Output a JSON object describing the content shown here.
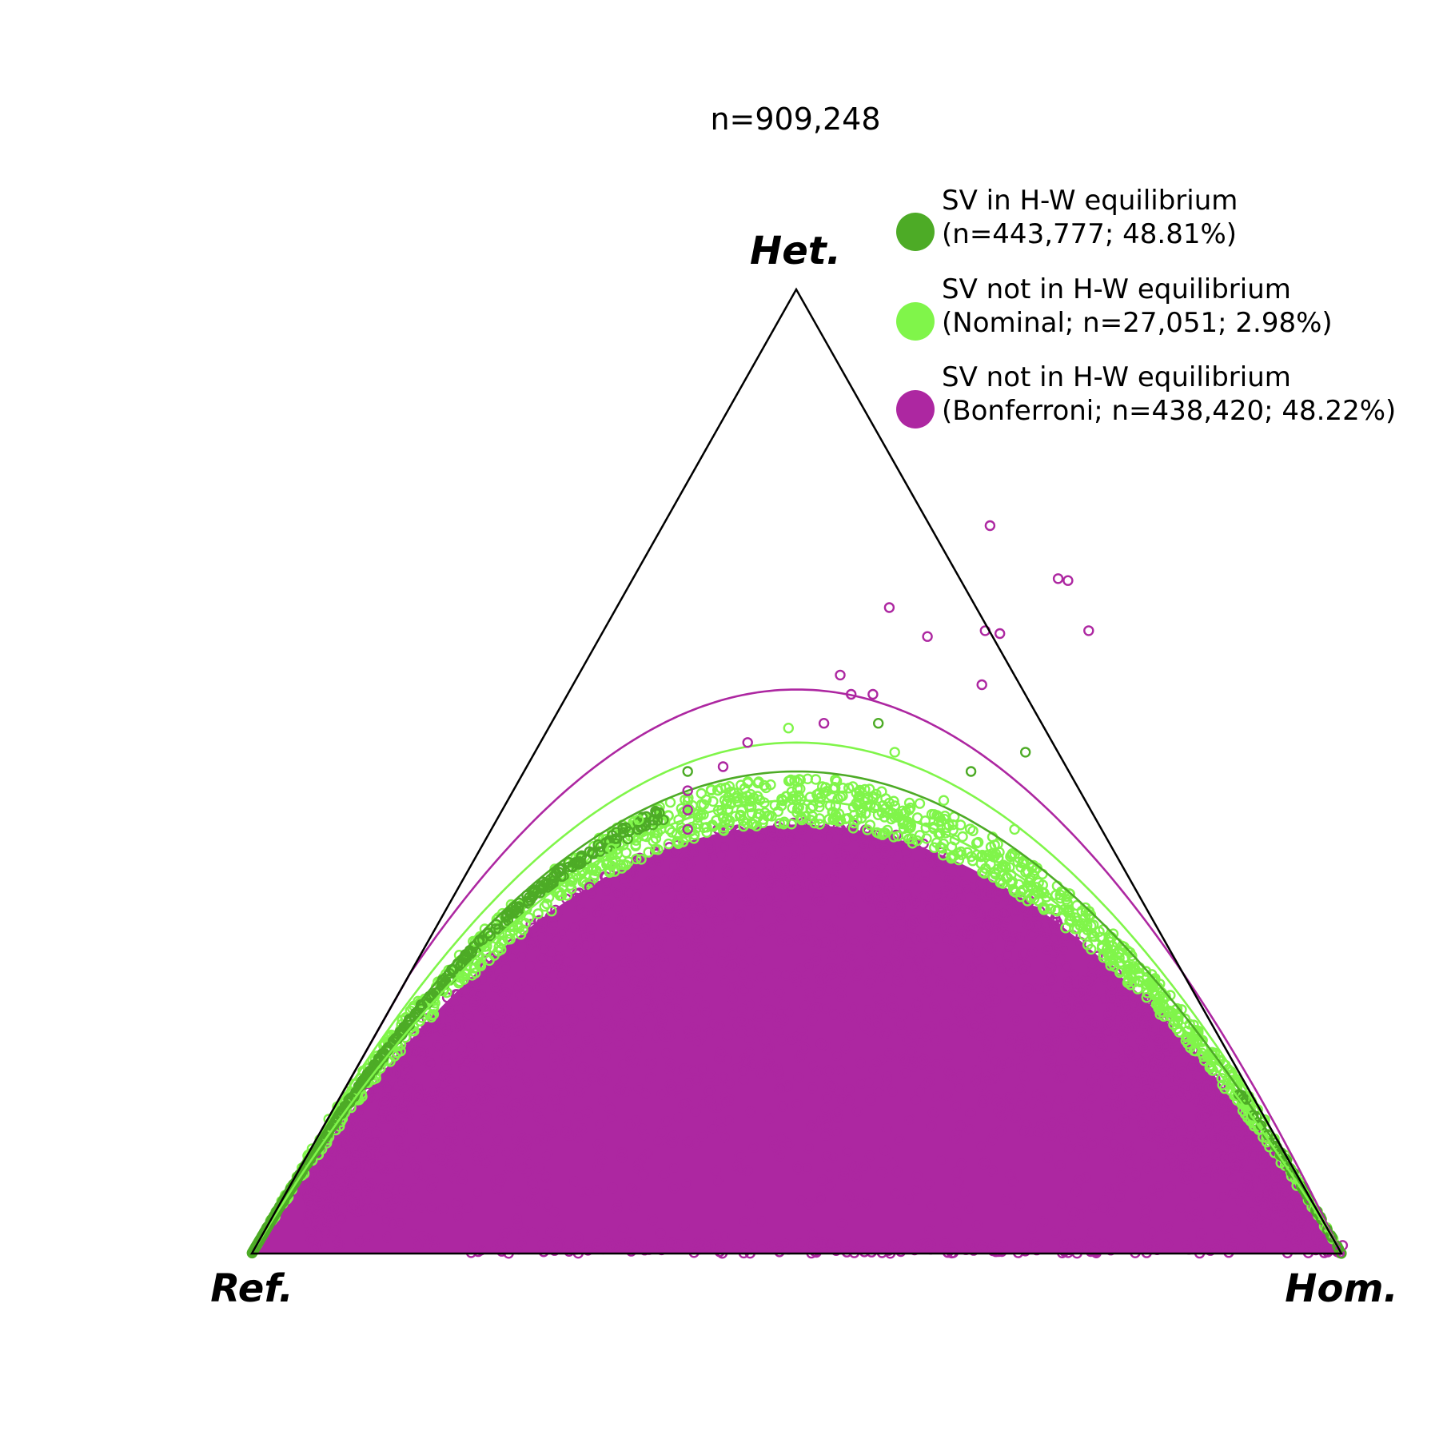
{
  "chart_data": {
    "type": "scatter",
    "subtype": "ternary (de Finetti) plot",
    "title": "n=909,248",
    "vertices": {
      "top": "Het.",
      "left": "Ref.",
      "right": "Hom."
    },
    "legend": {
      "placement": "top-right",
      "entries": [
        {
          "line1": "SV in H-W equilibrium",
          "line2": "(n=443,777; 48.81%)",
          "color": "#4dab26"
        },
        {
          "line1": "SV not in H-W equilibrium",
          "line2": "(Nominal; n=27,051; 2.98%)",
          "color": "#80f54a"
        },
        {
          "line1": "SV not in H-W equilibrium",
          "line2": "(Bonferroni; n=438,420; 48.22%)",
          "color": "#ad27a1"
        }
      ]
    },
    "reference_curves": [
      {
        "color": "#ad27a1",
        "peak_het_fraction": 0.585
      },
      {
        "color": "#80f54a",
        "peak_het_fraction": 0.53
      },
      {
        "color": "#4dab26",
        "peak_het_fraction": 0.5
      },
      {
        "color": "#80f54a",
        "peak_het_fraction": 0.47
      }
    ],
    "outlier_points_het_hom": [
      {
        "het": 0.755,
        "hom": 0.3
      },
      {
        "het": 0.698,
        "hom": 0.4
      },
      {
        "het": 0.7,
        "hom": 0.39
      },
      {
        "het": 0.67,
        "hom": 0.25
      },
      {
        "het": 0.64,
        "hom": 0.3
      },
      {
        "het": 0.646,
        "hom": 0.35
      },
      {
        "het": 0.643,
        "hom": 0.365
      },
      {
        "het": 0.646,
        "hom": 0.445
      },
      {
        "het": 0.6,
        "hom": 0.24
      },
      {
        "het": 0.59,
        "hom": 0.375
      },
      {
        "het": 0.58,
        "hom": 0.28
      },
      {
        "het": 0.58,
        "hom": 0.26
      },
      {
        "het": 0.53,
        "hom": 0.19
      },
      {
        "het": 0.55,
        "hom": 0.25
      },
      {
        "het": 0.505,
        "hom": 0.18
      },
      {
        "het": 0.48,
        "hom": 0.16
      },
      {
        "het": 0.46,
        "hom": 0.17
      },
      {
        "het": 0.44,
        "hom": 0.18
      },
      {
        "het": 0.38,
        "hom": 0.12
      }
    ],
    "series": [
      {
        "name": "SV in H-W equilibrium",
        "color": "#4dab26",
        "het_fraction_near": 1.0
      },
      {
        "name": "SV not in H-W equilibrium (Nominal)",
        "color": "#80f54a",
        "het_fraction_near": 0.96
      },
      {
        "name": "SV not in H-W equilibrium (Bonferroni)",
        "color": "#ad27a1",
        "het_fraction_near": 0.0
      }
    ]
  }
}
